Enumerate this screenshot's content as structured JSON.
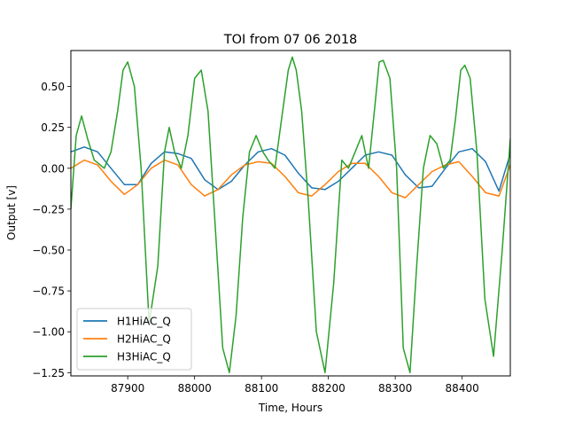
{
  "chart_data": {
    "type": "line",
    "title": "TOI from 07 06 2018",
    "xlabel": "Time, Hours",
    "ylabel": "Output [v]",
    "xlim": [
      87815,
      88472
    ],
    "ylim": [
      -1.27,
      0.72
    ],
    "xticks": [
      87900,
      88000,
      88100,
      88200,
      88300,
      88400
    ],
    "yticks": [
      0.5,
      0.25,
      0.0,
      -0.25,
      -0.5,
      -0.75,
      -1.0,
      -1.25
    ],
    "xtick_labels": [
      "87900",
      "88000",
      "88100",
      "88200",
      "88300",
      "88400"
    ],
    "ytick_labels": [
      "0.50",
      "0.25",
      "0.00",
      "−0.25",
      "−0.50",
      "−0.75",
      "−1.00",
      "−1.25"
    ],
    "grid": false,
    "legend": "lower-left",
    "series": [
      {
        "name": "H1HiAC_Q",
        "color": "#1f77b4",
        "x": [
          87815,
          87835,
          87855,
          87875,
          87895,
          87915,
          87935,
          87955,
          87975,
          87995,
          88015,
          88035,
          88055,
          88075,
          88095,
          88115,
          88135,
          88155,
          88175,
          88195,
          88215,
          88235,
          88255,
          88275,
          88295,
          88315,
          88335,
          88355,
          88375,
          88395,
          88415,
          88435,
          88455,
          88472
        ],
        "y": [
          0.1,
          0.13,
          0.1,
          0.0,
          -0.1,
          -0.1,
          0.03,
          0.1,
          0.09,
          0.06,
          -0.07,
          -0.13,
          -0.08,
          0.02,
          0.1,
          0.12,
          0.08,
          -0.03,
          -0.12,
          -0.13,
          -0.08,
          0.0,
          0.08,
          0.1,
          0.08,
          -0.04,
          -0.12,
          -0.11,
          0.0,
          0.1,
          0.12,
          0.04,
          -0.14,
          0.09
        ]
      },
      {
        "name": "H2HiAC_Q",
        "color": "#ff7f0e",
        "x": [
          87815,
          87835,
          87855,
          87875,
          87895,
          87915,
          87935,
          87955,
          87975,
          87995,
          88015,
          88035,
          88055,
          88075,
          88095,
          88115,
          88135,
          88155,
          88175,
          88195,
          88215,
          88235,
          88255,
          88275,
          88295,
          88315,
          88335,
          88355,
          88375,
          88395,
          88415,
          88435,
          88455,
          88472
        ],
        "y": [
          0.0,
          0.05,
          0.02,
          -0.08,
          -0.16,
          -0.1,
          0.0,
          0.05,
          0.02,
          -0.1,
          -0.17,
          -0.13,
          -0.04,
          0.02,
          0.04,
          0.03,
          -0.05,
          -0.15,
          -0.17,
          -0.1,
          -0.02,
          0.03,
          0.03,
          -0.05,
          -0.15,
          -0.18,
          -0.1,
          -0.02,
          0.02,
          0.04,
          -0.05,
          -0.15,
          -0.17,
          0.02
        ]
      },
      {
        "name": "H3HiAC_Q",
        "color": "#2ca02c",
        "x": [
          87815,
          87823,
          87831,
          87840,
          87850,
          87865,
          87875,
          87885,
          87893,
          87900,
          87910,
          87920,
          87932,
          87945,
          87955,
          87962,
          87970,
          87980,
          87990,
          88000,
          88010,
          88020,
          88030,
          88042,
          88052,
          88062,
          88072,
          88082,
          88092,
          88102,
          88110,
          88120,
          88130,
          88140,
          88146,
          88152,
          88160,
          88170,
          88182,
          88195,
          88208,
          88220,
          88230,
          88240,
          88250,
          88260,
          88270,
          88276,
          88282,
          88292,
          88302,
          88312,
          88322,
          88332,
          88342,
          88352,
          88362,
          88372,
          88382,
          88390,
          88398,
          88404,
          88412,
          88422,
          88434,
          88447,
          88460,
          88472
        ],
        "y": [
          -0.25,
          0.2,
          0.32,
          0.18,
          0.05,
          0.0,
          0.1,
          0.35,
          0.6,
          0.65,
          0.5,
          0.0,
          -0.95,
          -0.6,
          0.1,
          0.25,
          0.1,
          0.0,
          0.2,
          0.55,
          0.6,
          0.35,
          -0.3,
          -1.1,
          -1.25,
          -0.9,
          -0.3,
          0.1,
          0.2,
          0.1,
          0.05,
          0.0,
          0.3,
          0.6,
          0.68,
          0.6,
          0.35,
          -0.2,
          -1.0,
          -1.25,
          -0.7,
          0.05,
          0.0,
          0.1,
          0.2,
          0.0,
          0.4,
          0.65,
          0.66,
          0.55,
          0.0,
          -1.1,
          -1.25,
          -0.6,
          0.0,
          0.2,
          0.15,
          0.0,
          0.05,
          0.3,
          0.6,
          0.63,
          0.55,
          0.1,
          -0.8,
          -1.15,
          -0.5,
          0.18
        ]
      }
    ]
  }
}
